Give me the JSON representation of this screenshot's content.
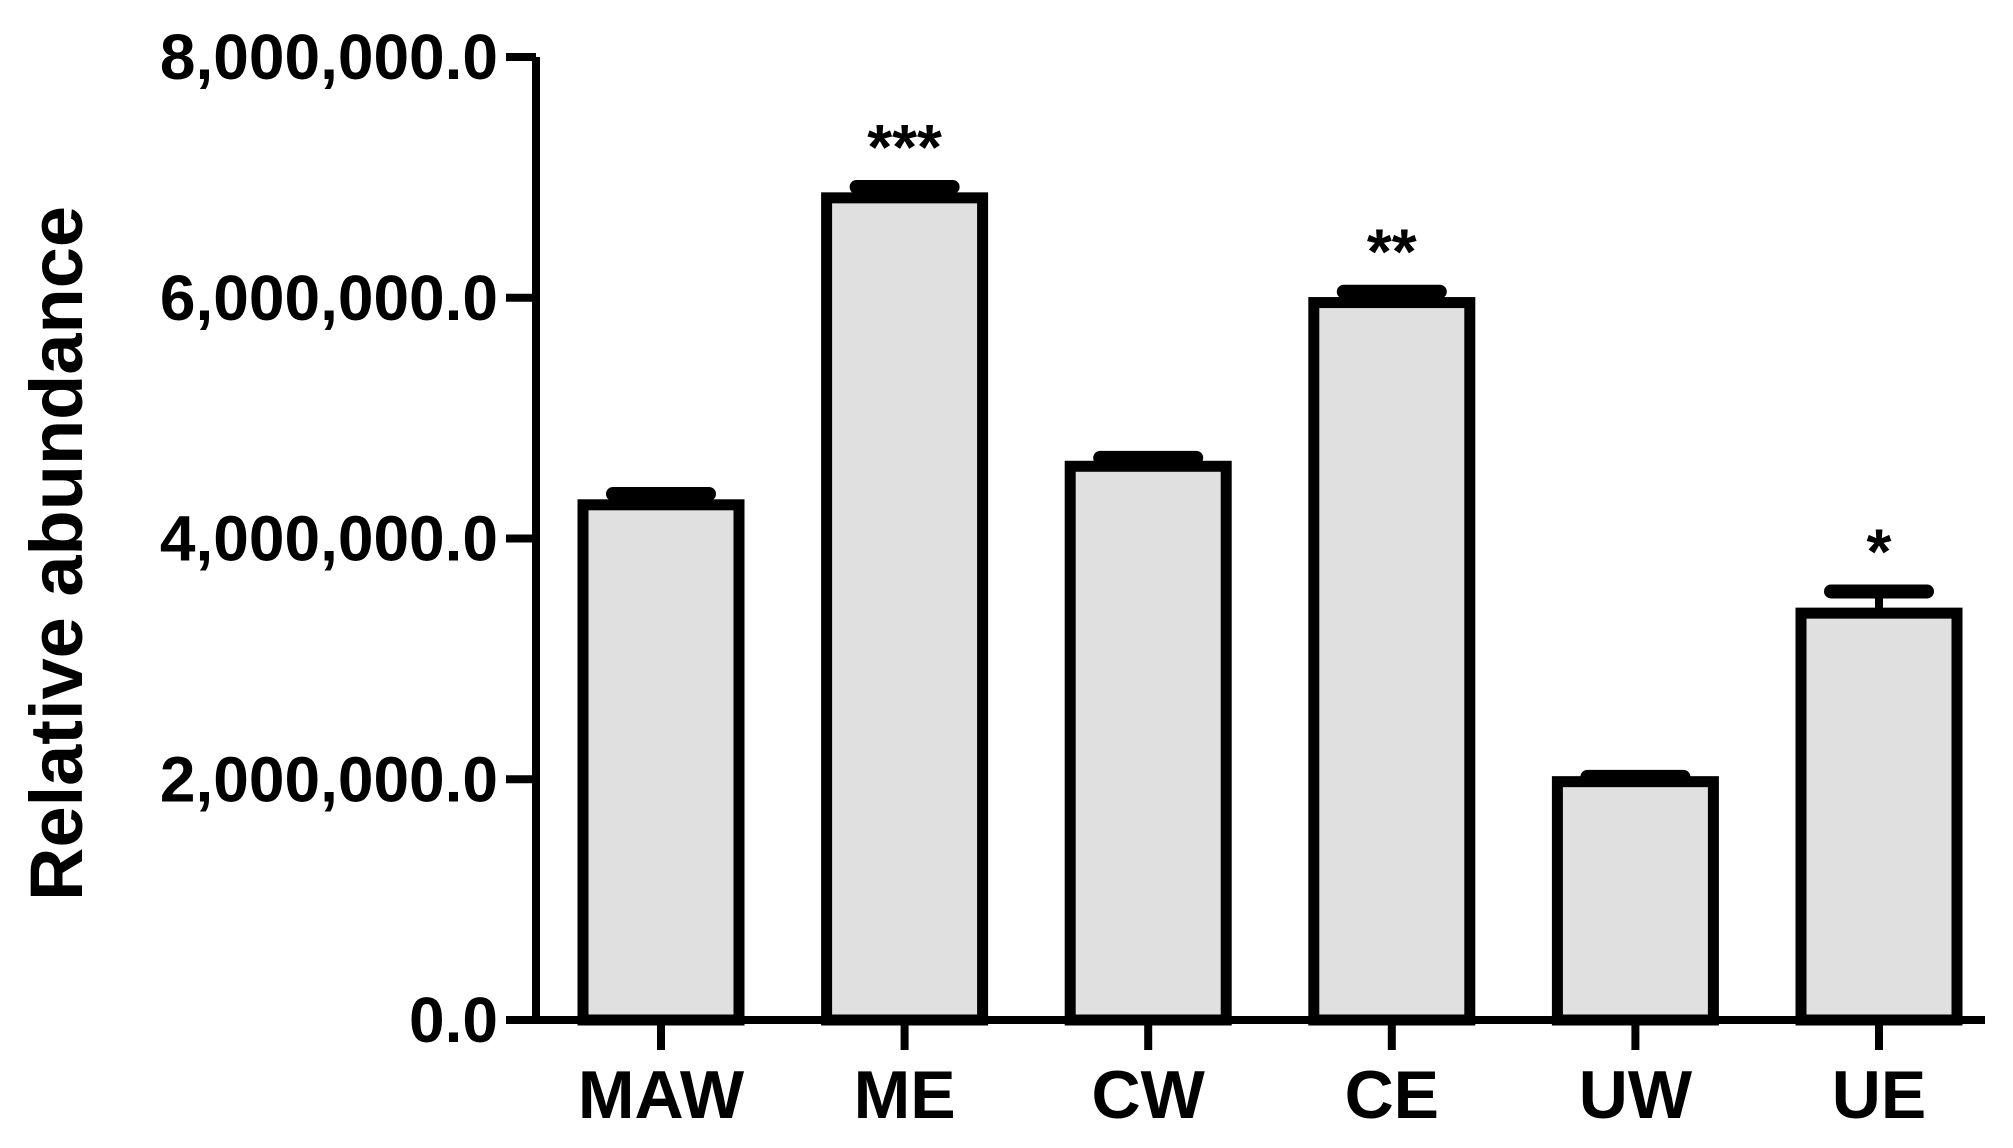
{
  "chart_data": {
    "type": "bar",
    "title": "",
    "xlabel": "",
    "ylabel": "Relative abundance",
    "ylim": [
      0,
      8000000
    ],
    "yticks": [
      0,
      2000000,
      4000000,
      6000000,
      8000000
    ],
    "ytick_labels": [
      "0.0",
      "2,000,000.0",
      "4,000,000.0",
      "6,000,000.0",
      "8,000,000.0"
    ],
    "categories": [
      "MAW",
      "ME",
      "CW",
      "CE",
      "UW",
      "UE"
    ],
    "values": [
      4280000,
      6830000,
      4600000,
      5960000,
      1980000,
      3380000
    ],
    "errors": [
      90000,
      90000,
      70000,
      90000,
      40000,
      180000
    ],
    "significance": [
      "",
      "***",
      "",
      "**",
      "",
      "*"
    ],
    "bar_fill": "#e0e0e0",
    "bar_stroke": "#000000",
    "grid": false,
    "legend": "none"
  }
}
